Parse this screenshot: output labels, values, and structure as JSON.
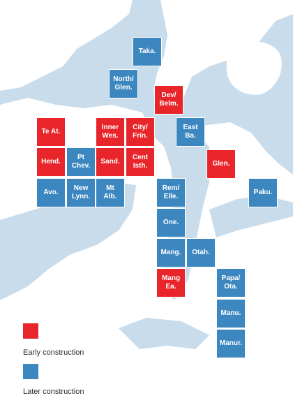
{
  "colors": {
    "early": "#e8252a",
    "later": "#3d87c0",
    "water": "#c9dceb",
    "land": "#ffffff"
  },
  "legend": {
    "early_label": "Early construction",
    "later_label": "Later construction"
  },
  "tiles": [
    {
      "id": "taka",
      "label": "Taka.",
      "status": "later"
    },
    {
      "id": "north-glen",
      "label": "North/\nGlen.",
      "status": "later"
    },
    {
      "id": "dev-belm",
      "label": "Dev/\nBelm.",
      "status": "early"
    },
    {
      "id": "te-at",
      "label": "Te At.",
      "status": "early"
    },
    {
      "id": "inner-wes",
      "label": "Inner\nWes.",
      "status": "early"
    },
    {
      "id": "city-frin",
      "label": "City/\nFrin.",
      "status": "early"
    },
    {
      "id": "east-ba",
      "label": "East\nBa.",
      "status": "later"
    },
    {
      "id": "hend",
      "label": "Hend.",
      "status": "early"
    },
    {
      "id": "pt-chev",
      "label": "Pt\nChev.",
      "status": "later"
    },
    {
      "id": "sand",
      "label": "Sand.",
      "status": "early"
    },
    {
      "id": "cent-isth",
      "label": "Cent\nIsth.",
      "status": "early"
    },
    {
      "id": "glen",
      "label": "Glen.",
      "status": "early"
    },
    {
      "id": "avo",
      "label": "Avo.",
      "status": "later"
    },
    {
      "id": "new-lynn",
      "label": "New\nLynn.",
      "status": "later"
    },
    {
      "id": "mt-alb",
      "label": "Mt\nAlb.",
      "status": "later"
    },
    {
      "id": "rem-elle",
      "label": "Rem/\nElle.",
      "status": "later"
    },
    {
      "id": "paku",
      "label": "Paku.",
      "status": "later"
    },
    {
      "id": "one",
      "label": "One.",
      "status": "later"
    },
    {
      "id": "mang",
      "label": "Mang.",
      "status": "later"
    },
    {
      "id": "otah",
      "label": "Otah.",
      "status": "later"
    },
    {
      "id": "mang-ea",
      "label": "Mang\nEa.",
      "status": "early"
    },
    {
      "id": "papa-ota",
      "label": "Papa/\nOta.",
      "status": "later"
    },
    {
      "id": "manu",
      "label": "Manu.",
      "status": "later"
    },
    {
      "id": "manur",
      "label": "Manur.",
      "status": "later"
    }
  ]
}
